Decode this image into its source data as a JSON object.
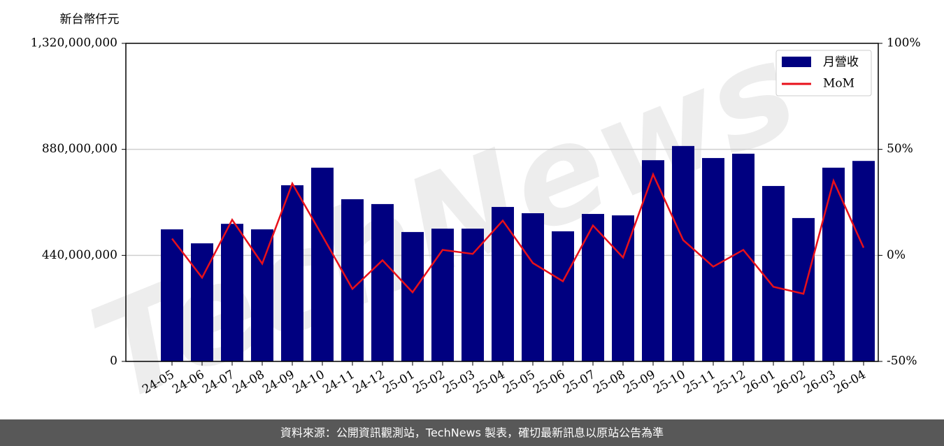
{
  "chart_data": {
    "type": "bar_line",
    "y_label": "新台幣仟元",
    "watermark": "TechNews",
    "footer": "資料來源：公開資訊觀測站，TechNews 製表，確切最新訊息以原站公告為準",
    "categories": [
      "24-05",
      "24-06",
      "24-07",
      "24-08",
      "24-09",
      "24-10",
      "24-11",
      "24-12",
      "25-01",
      "25-02",
      "25-03",
      "25-04",
      "25-05",
      "25-06",
      "25-07",
      "25-08",
      "25-09",
      "25-10",
      "25-11",
      "25-12",
      "26-01",
      "26-02",
      "26-03",
      "26-04"
    ],
    "series": [
      {
        "name": "月營收",
        "type": "bar",
        "color": "#000080",
        "values": [
          548000000,
          490000000,
          571000000,
          548000000,
          731000000,
          804000000,
          673000000,
          653000000,
          537000000,
          551000000,
          551000000,
          641000000,
          615000000,
          540000000,
          612000000,
          606000000,
          835000000,
          894000000,
          844000000,
          862000000,
          728000000,
          595000000,
          804000000,
          832000000
        ]
      },
      {
        "name": "MoM",
        "type": "line",
        "axis": "y2",
        "color": "#e8101a",
        "values": [
          7.9,
          -10.5,
          16.8,
          -3.9,
          33.9,
          9.2,
          -15.8,
          -2.3,
          -17.4,
          2.6,
          0.7,
          16.4,
          -3.6,
          -12.2,
          14.1,
          -1.0,
          38.2,
          7.2,
          -5.3,
          2.6,
          -14.8,
          -18.1,
          35.2,
          3.6
        ]
      }
    ],
    "ylim": [
      0,
      1320000000
    ],
    "yticks": [
      0,
      {
        "value": 440000000,
        "label": "440,000,000"
      },
      {
        "value": 880000000,
        "label": "880,000,000"
      },
      {
        "value": 1320000000,
        "label": "1,320,000,000"
      }
    ],
    "y2lim": [
      -50,
      100
    ],
    "y2ticks": [
      {
        "value": -50,
        "label": "-50%"
      },
      {
        "value": 0,
        "label": "0%"
      },
      {
        "value": 50,
        "label": "50%"
      },
      {
        "value": 100,
        "label": "100%"
      }
    ],
    "grid": true,
    "legend": "upper right"
  }
}
